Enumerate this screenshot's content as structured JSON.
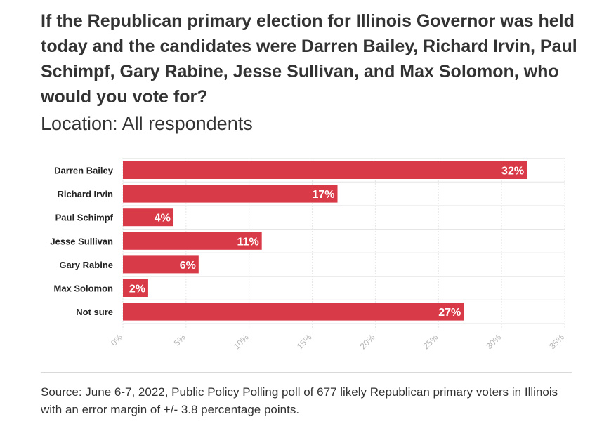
{
  "title": "If the Republican primary election for Illinois Governor was held today and the candidates were Darren Bailey, Richard Irvin, Paul Schimpf, Gary Rabine, Jesse Sullivan, and Max Solomon, who would you vote for?",
  "subtitle": "Location: All respondents",
  "source": "Source: June 6-7, 2022, Public Policy Polling poll of 677 likely Republican primary voters in Illinois with an error margin of +/- 3.8 percentage points.",
  "colors": {
    "bar": "#d93a47",
    "grid": "#e6e6e6",
    "tick": "#b5b5b5",
    "label": "#222222"
  },
  "chart_data": {
    "type": "bar",
    "orientation": "horizontal",
    "title": "If the Republican primary election for Illinois Governor was held today and the candidates were Darren Bailey, Richard Irvin, Paul Schimpf, Gary Rabine, Jesse Sullivan, and Max Solomon, who would you vote for?",
    "subtitle": "Location: All respondents",
    "categories": [
      "Darren Bailey",
      "Richard Irvin",
      "Paul Schimpf",
      "Jesse Sullivan",
      "Gary Rabine",
      "Max Solomon",
      "Not sure"
    ],
    "values": [
      32,
      17,
      4,
      11,
      6,
      2,
      27
    ],
    "data_labels": [
      "32%",
      "17%",
      "4%",
      "11%",
      "6%",
      "2%",
      "27%"
    ],
    "xlim": [
      0,
      35
    ],
    "xticks": [
      0,
      5,
      10,
      15,
      20,
      25,
      30,
      35
    ],
    "xtick_labels": [
      "0%",
      "5%",
      "10%",
      "15%",
      "20%",
      "25%",
      "30%",
      "35%"
    ],
    "grid": true,
    "xlabel": "",
    "ylabel": ""
  }
}
